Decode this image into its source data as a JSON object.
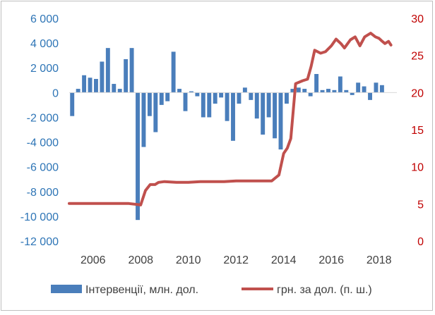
{
  "chart_data": {
    "type": "bar+line",
    "title": "",
    "x_ticks": [
      "2006",
      "2008",
      "2010",
      "2012",
      "2014",
      "2016",
      "2018"
    ],
    "y_left": {
      "ylim": [
        -12000,
        6000
      ],
      "ticks": [
        6000,
        4000,
        2000,
        0,
        -2000,
        -4000,
        -6000,
        -8000,
        -10000,
        -12000
      ],
      "tick_labels": [
        "6 000",
        "4 000",
        "2 000",
        "0",
        "-2 000",
        "-4 000",
        "-6 000",
        "-8 000",
        "-10 000",
        "-12 000"
      ],
      "color": "#2e75b6"
    },
    "y_right": {
      "ylim": [
        0,
        30
      ],
      "ticks": [
        30,
        25,
        20,
        15,
        10,
        5,
        0
      ],
      "tick_labels": [
        "30",
        "25",
        "20",
        "15",
        "10",
        "5",
        "0"
      ],
      "color": "#c00000"
    },
    "x_range": [
      2005.0,
      2018.75
    ],
    "series": [
      {
        "name": "Інтервенції, млн. дол.",
        "kind": "bar",
        "axis": "left",
        "color": "#4a7ebb",
        "x": [
          2005.125,
          2005.375,
          2005.625,
          2005.875,
          2006.125,
          2006.375,
          2006.625,
          2006.875,
          2007.125,
          2007.375,
          2007.625,
          2007.875,
          2008.125,
          2008.375,
          2008.625,
          2008.875,
          2009.125,
          2009.375,
          2009.625,
          2009.875,
          2010.125,
          2010.375,
          2010.625,
          2010.875,
          2011.125,
          2011.375,
          2011.625,
          2011.875,
          2012.125,
          2012.375,
          2012.625,
          2012.875,
          2013.125,
          2013.375,
          2013.625,
          2013.875,
          2014.125,
          2014.375,
          2014.625,
          2014.875,
          2015.125,
          2015.375,
          2015.625,
          2015.875,
          2016.125,
          2016.375,
          2016.625,
          2016.875,
          2017.125,
          2017.375,
          2017.625,
          2017.875,
          2018.125,
          2018.375,
          2018.625
        ],
        "values": [
          -1900,
          300,
          1400,
          1200,
          1100,
          2500,
          3600,
          700,
          300,
          2700,
          3600,
          -10300,
          -4400,
          -1900,
          -3200,
          -1000,
          -700,
          3300,
          300,
          -1500,
          100,
          -300,
          -2000,
          -2000,
          -900,
          -400,
          -2300,
          -3900,
          -900,
          400,
          -600,
          -2100,
          -3400,
          -2000,
          -3700,
          -4600,
          -900,
          300,
          400,
          300,
          -300,
          1500,
          200,
          300,
          200,
          1300,
          200,
          -200,
          800,
          500,
          -600,
          800,
          600,
          0,
          0
        ]
      },
      {
        "name": "грн. за дол. (п. ш.)",
        "kind": "line",
        "axis": "right",
        "color": "#c0504d",
        "x": [
          2005.0,
          2005.5,
          2006.0,
          2006.5,
          2007.0,
          2007.5,
          2007.9,
          2008.0,
          2008.2,
          2008.4,
          2008.6,
          2008.75,
          2009.0,
          2009.5,
          2010.0,
          2010.5,
          2011.0,
          2011.5,
          2012.0,
          2012.5,
          2013.0,
          2013.5,
          2013.8,
          2014.0,
          2014.15,
          2014.3,
          2014.5,
          2014.8,
          2015.0,
          2015.15,
          2015.3,
          2015.55,
          2015.75,
          2016.0,
          2016.2,
          2016.4,
          2016.55,
          2016.8,
          2017.0,
          2017.2,
          2017.4,
          2017.65,
          2017.85,
          2018.0,
          2018.1,
          2018.25,
          2018.4,
          2018.5
        ],
        "values": [
          5.05,
          5.05,
          5.05,
          5.05,
          5.05,
          5.05,
          4.9,
          4.85,
          6.8,
          7.6,
          7.6,
          7.9,
          8.0,
          7.9,
          7.9,
          8.0,
          8.0,
          8.0,
          8.1,
          8.1,
          8.1,
          8.1,
          8.9,
          11.8,
          12.5,
          13.8,
          21.2,
          21.6,
          21.8,
          23.5,
          25.7,
          25.3,
          25.5,
          26.3,
          27.2,
          26.6,
          26.0,
          27.1,
          27.5,
          26.3,
          27.5,
          28.0,
          27.5,
          27.3,
          27.0,
          26.6,
          26.9,
          26.4
        ]
      }
    ],
    "grid": false,
    "legend_position": "bottom"
  }
}
